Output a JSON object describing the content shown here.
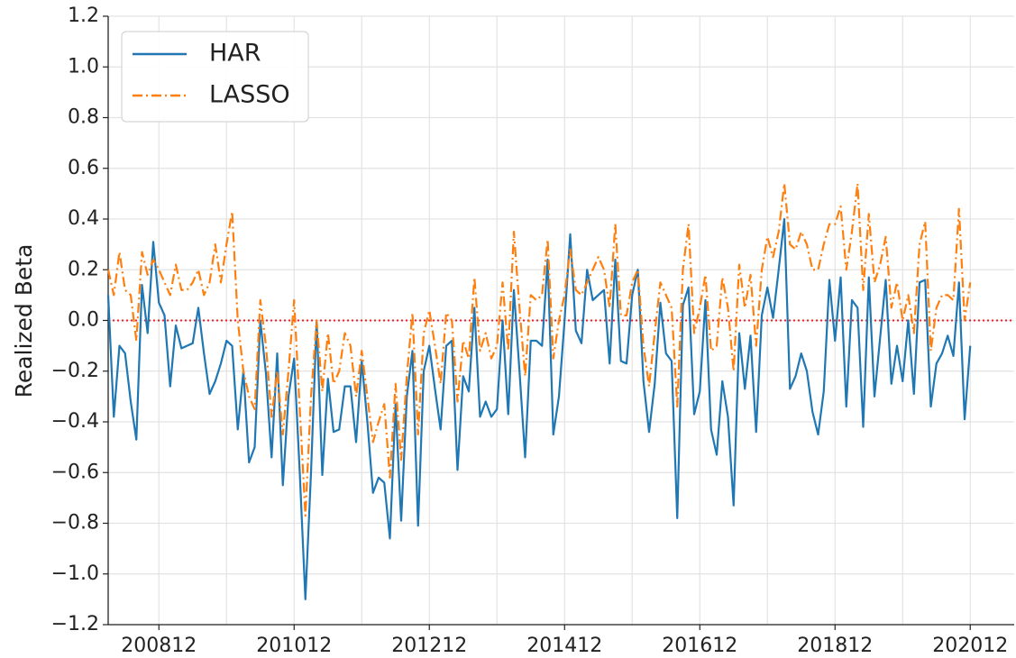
{
  "chart_data": {
    "type": "line",
    "ylabel": "Realized Beta",
    "categories": [
      null,
      null,
      null,
      null,
      null,
      null,
      null,
      null,
      null,
      "200812",
      null,
      null,
      null,
      null,
      null,
      null,
      null,
      null,
      null,
      null,
      null,
      null,
      null,
      null,
      null,
      null,
      null,
      null,
      null,
      null,
      null,
      null,
      null,
      "201012",
      null,
      null,
      null,
      null,
      null,
      null,
      null,
      null,
      null,
      null,
      null,
      null,
      null,
      null,
      null,
      null,
      null,
      null,
      null,
      null,
      null,
      null,
      null,
      "201212",
      null,
      null,
      null,
      null,
      null,
      null,
      null,
      null,
      null,
      null,
      null,
      null,
      null,
      null,
      null,
      null,
      null,
      null,
      null,
      null,
      null,
      null,
      null,
      "201412",
      null,
      null,
      null,
      null,
      null,
      null,
      null,
      null,
      null,
      null,
      null,
      null,
      null,
      null,
      null,
      null,
      null,
      null,
      null,
      null,
      null,
      null,
      null,
      "201612",
      null,
      null,
      null,
      null,
      null,
      null,
      null,
      null,
      null,
      null,
      null,
      null,
      null,
      null,
      null,
      null,
      null,
      null,
      null,
      null,
      null,
      null,
      null,
      "201812",
      null,
      null,
      null,
      null,
      null,
      null,
      null,
      null,
      null,
      null,
      null,
      null,
      null,
      null,
      null,
      null,
      null,
      null,
      null,
      null,
      null,
      null,
      null,
      "202012"
    ],
    "series": [
      {
        "name": "HAR",
        "color": "#1f77b4",
        "style": "solid",
        "values": [
          0.1,
          -0.38,
          -0.1,
          -0.13,
          -0.32,
          -0.47,
          0.14,
          -0.05,
          0.31,
          0.07,
          0.02,
          -0.26,
          -0.02,
          -0.11,
          -0.1,
          -0.09,
          0.05,
          -0.13,
          -0.29,
          -0.24,
          -0.17,
          -0.08,
          -0.1,
          -0.43,
          -0.2,
          -0.56,
          -0.5,
          0.0,
          -0.21,
          -0.54,
          -0.13,
          -0.65,
          -0.3,
          -0.15,
          -0.6,
          -1.1,
          -0.6,
          0.0,
          -0.61,
          -0.23,
          -0.44,
          -0.43,
          -0.26,
          -0.26,
          -0.48,
          -0.16,
          -0.4,
          -0.68,
          -0.62,
          -0.64,
          -0.86,
          -0.33,
          -0.79,
          -0.3,
          -0.12,
          -0.81,
          -0.2,
          -0.1,
          -0.27,
          -0.43,
          -0.1,
          -0.08,
          -0.59,
          -0.22,
          -0.28,
          0.05,
          -0.38,
          -0.32,
          -0.38,
          -0.35,
          0.0,
          -0.37,
          0.12,
          -0.2,
          -0.54,
          -0.08,
          -0.08,
          -0.1,
          0.24,
          -0.45,
          -0.3,
          0.0,
          0.34,
          -0.04,
          -0.09,
          0.2,
          0.08,
          0.1,
          0.12,
          -0.17,
          0.24,
          -0.16,
          -0.17,
          0.1,
          0.2,
          -0.24,
          -0.44,
          -0.25,
          0.07,
          -0.13,
          -0.16,
          -0.78,
          0.06,
          0.13,
          -0.37,
          -0.28,
          0.08,
          -0.43,
          -0.53,
          -0.24,
          -0.38,
          -0.73,
          -0.05,
          -0.27,
          -0.06,
          -0.44,
          0.02,
          0.13,
          0.01,
          0.2,
          0.4,
          -0.27,
          -0.22,
          -0.13,
          -0.2,
          -0.36,
          -0.45,
          -0.28,
          0.16,
          -0.08,
          0.17,
          -0.34,
          0.08,
          0.05,
          -0.42,
          0.17,
          -0.3,
          -0.07,
          0.16,
          -0.25,
          -0.1,
          -0.24,
          0.0,
          -0.29,
          0.15,
          0.16,
          -0.34,
          -0.17,
          -0.13,
          -0.06,
          -0.14,
          0.15,
          -0.39,
          -0.1
        ]
      },
      {
        "name": "LASSO",
        "color": "#ff7f0e",
        "style": "dashdot",
        "values": [
          0.2,
          0.1,
          0.27,
          0.12,
          0.1,
          -0.08,
          0.27,
          0.18,
          0.24,
          0.2,
          0.15,
          0.1,
          0.22,
          0.12,
          0.12,
          0.15,
          0.2,
          0.1,
          0.15,
          0.3,
          0.15,
          0.3,
          0.43,
          0.0,
          -0.2,
          -0.3,
          -0.35,
          0.08,
          -0.1,
          -0.38,
          -0.2,
          -0.45,
          -0.2,
          0.08,
          -0.35,
          -0.77,
          -0.3,
          0.0,
          -0.28,
          -0.05,
          -0.25,
          -0.2,
          -0.05,
          -0.1,
          -0.3,
          -0.12,
          -0.3,
          -0.48,
          -0.4,
          -0.33,
          -0.62,
          -0.25,
          -0.55,
          -0.22,
          0.03,
          -0.45,
          -0.05,
          0.04,
          -0.1,
          -0.25,
          0.03,
          0.0,
          -0.32,
          -0.08,
          -0.15,
          0.17,
          -0.12,
          -0.05,
          -0.15,
          -0.1,
          0.15,
          -0.12,
          0.35,
          0.05,
          -0.22,
          0.1,
          0.08,
          0.1,
          0.32,
          -0.15,
          0.0,
          0.1,
          0.28,
          0.12,
          0.1,
          0.15,
          0.2,
          0.25,
          0.2,
          0.05,
          0.38,
          0.02,
          0.02,
          0.15,
          0.2,
          -0.1,
          -0.26,
          -0.05,
          0.15,
          0.1,
          0.05,
          -0.34,
          0.2,
          0.38,
          -0.05,
          0.05,
          0.18,
          -0.12,
          -0.1,
          0.17,
          0.05,
          -0.2,
          0.22,
          0.05,
          0.18,
          -0.1,
          0.2,
          0.33,
          0.25,
          0.35,
          0.54,
          0.3,
          0.28,
          0.35,
          0.3,
          0.2,
          0.2,
          0.3,
          0.38,
          0.38,
          0.45,
          0.2,
          0.35,
          0.54,
          0.12,
          0.42,
          0.15,
          0.22,
          0.33,
          0.05,
          0.15,
          0.0,
          0.1,
          -0.05,
          0.3,
          0.39,
          -0.12,
          0.05,
          0.1,
          0.1,
          0.08,
          0.44,
          0.0,
          0.15
        ]
      }
    ],
    "reference_line": {
      "y": 0,
      "color": "#e8202a",
      "style": "dotted"
    },
    "ylim": [
      -1.2,
      1.2
    ],
    "yticks": [
      {
        "value": -1.2,
        "label": "−1.2"
      },
      {
        "value": -1.0,
        "label": "−1.0"
      },
      {
        "value": -0.8,
        "label": "−0.8"
      },
      {
        "value": -0.6,
        "label": "−0.6"
      },
      {
        "value": -0.4,
        "label": "−0.4"
      },
      {
        "value": -0.2,
        "label": "−0.2"
      },
      {
        "value": 0,
        "label": "0.0"
      },
      0.2,
      0.4,
      0.6,
      0.8,
      {
        "value": 1,
        "label": "1.0"
      },
      1.2
    ],
    "grid": true,
    "legend": "upper left"
  }
}
